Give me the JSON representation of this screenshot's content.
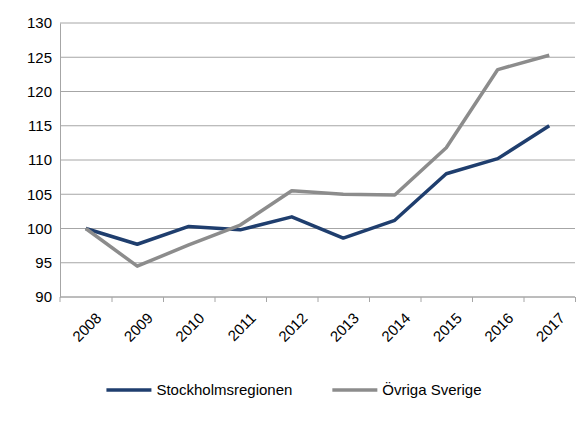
{
  "chart_data": {
    "type": "line",
    "categories": [
      "2008",
      "2009",
      "2010",
      "2011",
      "2012",
      "2013",
      "2014",
      "2015",
      "2016",
      "2017"
    ],
    "series": [
      {
        "name": "Stockholmsregionen",
        "color": "#1f3e6e",
        "values": [
          100,
          97.7,
          100.3,
          99.8,
          101.7,
          98.6,
          101.2,
          108,
          110.2,
          115
        ]
      },
      {
        "name": "Övriga Sverige",
        "color": "#8c8c8c",
        "values": [
          100,
          94.5,
          97.6,
          100.5,
          105.5,
          105,
          104.9,
          111.8,
          123.2,
          125.3
        ]
      }
    ],
    "ylim": [
      90,
      130
    ],
    "yticks": [
      90,
      95,
      100,
      105,
      110,
      115,
      120,
      125,
      130
    ],
    "grid": true,
    "legend": "bottom"
  }
}
